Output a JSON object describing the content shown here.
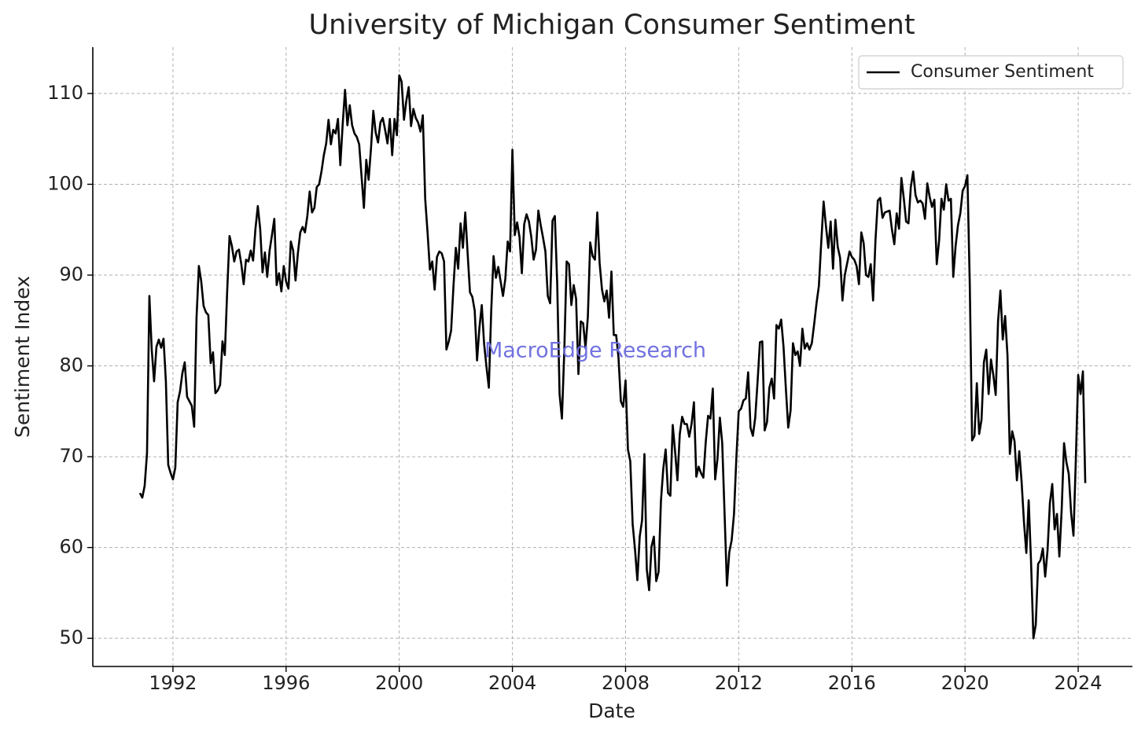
{
  "chart_data": {
    "type": "line",
    "title": "University of Michigan Consumer Sentiment",
    "xlabel": "Date",
    "ylabel": "Sentiment Index",
    "watermark": "MacroEdge Research",
    "grid": true,
    "legend": "upper right",
    "x": [
      "1990-11",
      "1990-12",
      "1991-01",
      "1991-02",
      "1991-03",
      "1991-04",
      "1991-05",
      "1991-06",
      "1991-07",
      "1991-08",
      "1991-09",
      "1991-10",
      "1991-11",
      "1991-12",
      "1992-01",
      "1992-02",
      "1992-03",
      "1992-04",
      "1992-05",
      "1992-06",
      "1992-07",
      "1992-08",
      "1992-09",
      "1992-10",
      "1992-11",
      "1992-12",
      "1993-01",
      "1993-02",
      "1993-03",
      "1993-04",
      "1993-05",
      "1993-06",
      "1993-07",
      "1993-08",
      "1993-09",
      "1993-10",
      "1993-11",
      "1993-12",
      "1994-01",
      "1994-02",
      "1994-03",
      "1994-04",
      "1994-05",
      "1994-06",
      "1994-07",
      "1994-08",
      "1994-09",
      "1994-10",
      "1994-11",
      "1994-12",
      "1995-01",
      "1995-02",
      "1995-03",
      "1995-04",
      "1995-05",
      "1995-06",
      "1995-07",
      "1995-08",
      "1995-09",
      "1995-10",
      "1995-11",
      "1995-12",
      "1996-01",
      "1996-02",
      "1996-03",
      "1996-04",
      "1996-05",
      "1996-06",
      "1996-07",
      "1996-08",
      "1996-09",
      "1996-10",
      "1996-11",
      "1996-12",
      "1997-01",
      "1997-02",
      "1997-03",
      "1997-04",
      "1997-05",
      "1997-06",
      "1997-07",
      "1997-08",
      "1997-09",
      "1997-10",
      "1997-11",
      "1997-12",
      "1998-01",
      "1998-02",
      "1998-03",
      "1998-04",
      "1998-05",
      "1998-06",
      "1998-07",
      "1998-08",
      "1998-09",
      "1998-10",
      "1998-11",
      "1998-12",
      "1999-01",
      "1999-02",
      "1999-03",
      "1999-04",
      "1999-05",
      "1999-06",
      "1999-07",
      "1999-08",
      "1999-09",
      "1999-10",
      "1999-11",
      "1999-12",
      "2000-01",
      "2000-02",
      "2000-03",
      "2000-04",
      "2000-05",
      "2000-06",
      "2000-07",
      "2000-08",
      "2000-09",
      "2000-10",
      "2000-11",
      "2000-12",
      "2001-01",
      "2001-02",
      "2001-03",
      "2001-04",
      "2001-05",
      "2001-06",
      "2001-07",
      "2001-08",
      "2001-09",
      "2001-10",
      "2001-11",
      "2001-12",
      "2002-01",
      "2002-02",
      "2002-03",
      "2002-04",
      "2002-05",
      "2002-06",
      "2002-07",
      "2002-08",
      "2002-09",
      "2002-10",
      "2002-11",
      "2002-12",
      "2003-01",
      "2003-02",
      "2003-03",
      "2003-04",
      "2003-05",
      "2003-06",
      "2003-07",
      "2003-08",
      "2003-09",
      "2003-10",
      "2003-11",
      "2003-12",
      "2004-01",
      "2004-02",
      "2004-03",
      "2004-04",
      "2004-05",
      "2004-06",
      "2004-07",
      "2004-08",
      "2004-09",
      "2004-10",
      "2004-11",
      "2004-12",
      "2005-01",
      "2005-02",
      "2005-03",
      "2005-04",
      "2005-05",
      "2005-06",
      "2005-07",
      "2005-08",
      "2005-09",
      "2005-10",
      "2005-11",
      "2005-12",
      "2006-01",
      "2006-02",
      "2006-03",
      "2006-04",
      "2006-05",
      "2006-06",
      "2006-07",
      "2006-08",
      "2006-09",
      "2006-10",
      "2006-11",
      "2006-12",
      "2007-01",
      "2007-02",
      "2007-03",
      "2007-04",
      "2007-05",
      "2007-06",
      "2007-07",
      "2007-08",
      "2007-09",
      "2007-10",
      "2007-11",
      "2007-12",
      "2008-01",
      "2008-02",
      "2008-03",
      "2008-04",
      "2008-05",
      "2008-06",
      "2008-07",
      "2008-08",
      "2008-09",
      "2008-10",
      "2008-11",
      "2008-12",
      "2009-01",
      "2009-02",
      "2009-03",
      "2009-04",
      "2009-05",
      "2009-06",
      "2009-07",
      "2009-08",
      "2009-09",
      "2009-10",
      "2009-11",
      "2009-12",
      "2010-01",
      "2010-02",
      "2010-03",
      "2010-04",
      "2010-05",
      "2010-06",
      "2010-07",
      "2010-08",
      "2010-09",
      "2010-10",
      "2010-11",
      "2010-12",
      "2011-01",
      "2011-02",
      "2011-03",
      "2011-04",
      "2011-05",
      "2011-06",
      "2011-07",
      "2011-08",
      "2011-09",
      "2011-10",
      "2011-11",
      "2011-12",
      "2012-01",
      "2012-02",
      "2012-03",
      "2012-04",
      "2012-05",
      "2012-06",
      "2012-07",
      "2012-08",
      "2012-09",
      "2012-10",
      "2012-11",
      "2012-12",
      "2013-01",
      "2013-02",
      "2013-03",
      "2013-04",
      "2013-05",
      "2013-06",
      "2013-07",
      "2013-08",
      "2013-09",
      "2013-10",
      "2013-11",
      "2013-12",
      "2014-01",
      "2014-02",
      "2014-03",
      "2014-04",
      "2014-05",
      "2014-06",
      "2014-07",
      "2014-08",
      "2014-09",
      "2014-10",
      "2014-11",
      "2014-12",
      "2015-01",
      "2015-02",
      "2015-03",
      "2015-04",
      "2015-05",
      "2015-06",
      "2015-07",
      "2015-08",
      "2015-09",
      "2015-10",
      "2015-11",
      "2015-12",
      "2016-01",
      "2016-02",
      "2016-03",
      "2016-04",
      "2016-05",
      "2016-06",
      "2016-07",
      "2016-08",
      "2016-09",
      "2016-10",
      "2016-11",
      "2016-12",
      "2017-01",
      "2017-02",
      "2017-03",
      "2017-04",
      "2017-05",
      "2017-06",
      "2017-07",
      "2017-08",
      "2017-09",
      "2017-10",
      "2017-11",
      "2017-12",
      "2018-01",
      "2018-02",
      "2018-03",
      "2018-04",
      "2018-05",
      "2018-06",
      "2018-07",
      "2018-08",
      "2018-09",
      "2018-10",
      "2018-11",
      "2018-12",
      "2019-01",
      "2019-02",
      "2019-03",
      "2019-04",
      "2019-05",
      "2019-06",
      "2019-07",
      "2019-08",
      "2019-09",
      "2019-10",
      "2019-11",
      "2019-12",
      "2020-01",
      "2020-02",
      "2020-03",
      "2020-04",
      "2020-05",
      "2020-06",
      "2020-07",
      "2020-08",
      "2020-09",
      "2020-10",
      "2020-11",
      "2020-12",
      "2021-01",
      "2021-02",
      "2021-03",
      "2021-04",
      "2021-05",
      "2021-06",
      "2021-07",
      "2021-08",
      "2021-09",
      "2021-10",
      "2021-11",
      "2021-12",
      "2022-01",
      "2022-02",
      "2022-03",
      "2022-04",
      "2022-05",
      "2022-06",
      "2022-07",
      "2022-08",
      "2022-09",
      "2022-10",
      "2022-11",
      "2022-12",
      "2023-01",
      "2023-02",
      "2023-03",
      "2023-04",
      "2023-05",
      "2023-06",
      "2023-07",
      "2023-08",
      "2023-09",
      "2023-10",
      "2023-11",
      "2023-12",
      "2024-01",
      "2024-02",
      "2024-03",
      "2024-04"
    ],
    "series": [
      {
        "name": "Consumer Sentiment",
        "color": "#000000",
        "values": [
          66.0,
          65.5,
          66.8,
          70.4,
          87.7,
          81.8,
          78.3,
          82.1,
          82.9,
          82.0,
          83.0,
          78.3,
          69.1,
          68.2,
          67.5,
          68.8,
          76.0,
          77.2,
          79.2,
          80.4,
          76.6,
          76.1,
          75.6,
          73.3,
          85.3,
          91.0,
          89.3,
          86.6,
          85.9,
          85.6,
          80.3,
          81.5,
          77.0,
          77.3,
          77.9,
          82.7,
          81.2,
          88.2,
          94.3,
          93.2,
          91.5,
          92.6,
          92.8,
          91.2,
          89.0,
          91.7,
          91.5,
          92.7,
          91.6,
          95.1,
          97.6,
          95.1,
          90.3,
          92.5,
          89.8,
          92.7,
          94.4,
          96.2,
          88.9,
          90.2,
          88.2,
          91.0,
          89.3,
          88.5,
          93.7,
          92.7,
          89.4,
          92.4,
          94.7,
          95.3,
          94.7,
          96.5,
          99.2,
          96.9,
          97.4,
          99.7,
          100.0,
          101.4,
          103.2,
          104.5,
          107.1,
          104.4,
          106.0,
          105.6,
          107.2,
          102.1,
          106.6,
          110.4,
          106.5,
          108.7,
          106.5,
          105.6,
          105.2,
          104.4,
          100.9,
          97.4,
          102.7,
          100.5,
          103.9,
          108.1,
          105.7,
          104.6,
          106.8,
          107.3,
          106.0,
          104.5,
          107.2,
          103.2,
          107.2,
          105.4,
          112.0,
          111.3,
          107.1,
          109.2,
          110.7,
          106.4,
          108.3,
          107.3,
          106.8,
          105.8,
          107.6,
          98.4,
          94.7,
          90.6,
          91.5,
          88.4,
          92.0,
          92.6,
          92.4,
          91.5,
          81.8,
          82.7,
          83.9,
          88.8,
          93.0,
          90.7,
          95.7,
          93.0,
          96.9,
          92.4,
          88.1,
          87.6,
          86.1,
          80.6,
          84.2,
          86.7,
          82.4,
          79.9,
          77.6,
          86.0,
          92.1,
          89.7,
          90.9,
          89.3,
          87.7,
          89.6,
          93.7,
          92.6,
          103.8,
          94.4,
          95.8,
          94.2,
          90.2,
          95.6,
          96.7,
          95.9,
          94.2,
          91.7,
          92.8,
          97.1,
          95.5,
          94.1,
          92.6,
          87.7,
          86.9,
          96.0,
          96.5,
          89.1,
          76.9,
          74.2,
          81.6,
          91.5,
          91.2,
          86.7,
          88.9,
          87.4,
          79.1,
          84.9,
          84.7,
          82.0,
          85.4,
          93.6,
          92.1,
          91.7,
          96.9,
          91.3,
          88.4,
          87.1,
          88.3,
          85.3,
          90.4,
          83.4,
          83.4,
          80.9,
          76.1,
          75.5,
          78.4,
          70.8,
          69.5,
          62.6,
          59.8,
          56.4,
          61.2,
          63.0,
          70.3,
          57.6,
          55.3,
          60.1,
          61.2,
          56.3,
          57.3,
          65.1,
          68.7,
          70.8,
          66.0,
          65.7,
          73.5,
          70.6,
          67.4,
          72.5,
          74.4,
          73.6,
          73.6,
          72.2,
          73.6,
          76.0,
          67.8,
          68.9,
          68.2,
          67.7,
          71.6,
          74.5,
          74.2,
          77.5,
          67.5,
          69.8,
          74.3,
          71.5,
          63.7,
          55.8,
          59.5,
          60.8,
          63.7,
          69.9,
          75.0,
          75.3,
          76.2,
          76.4,
          79.3,
          73.2,
          72.3,
          74.3,
          78.3,
          82.6,
          82.7,
          72.9,
          73.8,
          77.6,
          78.6,
          76.4,
          84.5,
          84.1,
          85.1,
          82.1,
          77.5,
          73.2,
          75.1,
          82.5,
          81.2,
          81.6,
          80.0,
          84.1,
          81.9,
          82.5,
          81.8,
          82.5,
          84.6,
          86.9,
          88.8,
          93.6,
          98.1,
          95.4,
          93.0,
          95.9,
          90.7,
          96.1,
          93.1,
          91.9,
          87.2,
          90.0,
          91.3,
          92.6,
          92.0,
          91.7,
          91.0,
          89.0,
          94.7,
          93.5,
          90.0,
          89.8,
          91.2,
          87.2,
          93.8,
          98.2,
          98.5,
          96.3,
          96.9,
          97.0,
          97.1,
          95.0,
          93.4,
          96.8,
          95.1,
          100.7,
          98.5,
          95.9,
          95.7,
          99.7,
          101.4,
          98.8,
          98.0,
          98.2,
          97.9,
          96.2,
          100.1,
          98.6,
          97.5,
          98.3,
          91.2,
          93.8,
          98.4,
          97.2,
          100.0,
          98.2,
          98.4,
          89.8,
          93.2,
          95.5,
          96.8,
          99.3,
          99.8,
          101.0,
          89.1,
          71.8,
          72.3,
          78.1,
          72.5,
          74.1,
          80.4,
          81.8,
          76.9,
          80.7,
          79.0,
          76.8,
          84.9,
          88.3,
          82.9,
          85.5,
          81.2,
          70.3,
          72.8,
          71.7,
          67.4,
          70.6,
          67.2,
          62.8,
          59.4,
          65.2,
          58.4,
          50.0,
          51.5,
          58.2,
          58.6,
          59.9,
          56.8,
          59.7,
          64.9,
          67.0,
          62.0,
          63.7,
          59.0,
          64.2,
          71.5,
          69.4,
          68.1,
          63.8,
          61.3,
          69.7,
          79.0,
          76.9,
          79.4,
          67.1
        ]
      }
    ],
    "xlim": [
      "1989-03",
      "2025-12"
    ],
    "xticks": [
      {
        "value": "1992-01",
        "label": "1992"
      },
      {
        "value": "1996-01",
        "label": "1996"
      },
      {
        "value": "2000-01",
        "label": "2000"
      },
      {
        "value": "2004-01",
        "label": "2004"
      },
      {
        "value": "2008-01",
        "label": "2008"
      },
      {
        "value": "2012-01",
        "label": "2012"
      },
      {
        "value": "2016-01",
        "label": "2016"
      },
      {
        "value": "2020-01",
        "label": "2020"
      },
      {
        "value": "2024-01",
        "label": "2024"
      }
    ],
    "ylim": [
      46.9,
      115.1
    ],
    "yticks": [
      50,
      60,
      70,
      80,
      90,
      100,
      110
    ]
  }
}
